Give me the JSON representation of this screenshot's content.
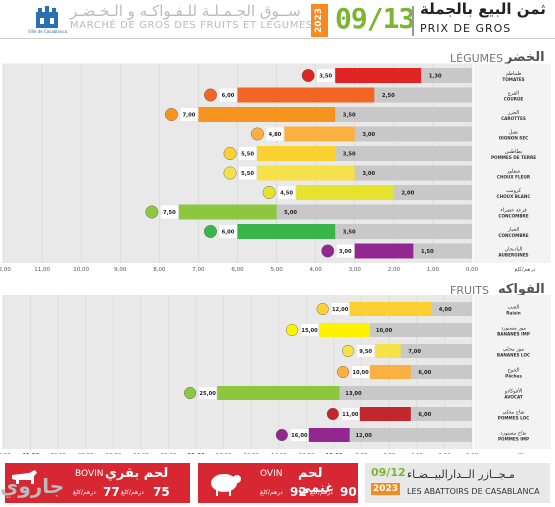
{
  "header": {
    "logo_text": "Ville de Casablanca",
    "title_ar": "ســوق الجـمـلـة للـفـواكـه و الـخـضـر",
    "title_fr": "MARCHÉ DE GROS DES FRUITS ET LÉGUMES",
    "year": "2023",
    "date": "09/13",
    "prix_ar": "ثمن البيع بالجملة",
    "prix_fr": "PRIX DE GROS"
  },
  "legumes": {
    "title_fr": "LÉGUMES",
    "title_ar": "الخضر",
    "axis_unit": "درهم/كلغ",
    "ticks": [
      "12,00",
      "11,00",
      "10,00",
      "9,00",
      "8,00",
      "7,00",
      "6,00",
      "5,00",
      "4,00",
      "3,00",
      "2,00",
      "1,00",
      "0,00"
    ]
  },
  "fruits": {
    "title_fr": "FRUITS",
    "title_ar": "الفواكه",
    "axis_unit": "درهم/كلغ",
    "ticks": [
      "46,00",
      "40,00",
      "30,00",
      "28,00",
      "26,00",
      "24,00",
      "22,00",
      "20,00",
      "18,00",
      "16,00",
      "14,00",
      "12,00",
      "10,00",
      "8,00",
      "6,00",
      "4,00",
      "2,00",
      "0,00"
    ]
  },
  "chart_data": [
    {
      "type": "bar",
      "title": "LÉGUMES",
      "categories": [
        "TOMATES",
        "COURGE",
        "CAROTTES",
        "OIGNON SEC",
        "POMMES DE TERRE",
        "CHOUX FLEUR",
        "CHOUX BLANC",
        "CONCOMBRE",
        "CONCOMBRE",
        "AUBERGINES"
      ],
      "categories_ar": [
        "طماطم",
        "القرع",
        "الجزر",
        "بصل",
        "بطاطس",
        "شفلور",
        "كرومب",
        "قرعة خضراء",
        "الخيار",
        "الباذنجان"
      ],
      "series": [
        {
          "name": "max",
          "values": [
            3.5,
            6.0,
            7.0,
            4.8,
            5.5,
            5.5,
            4.5,
            7.5,
            6.0,
            3.0
          ]
        },
        {
          "name": "min",
          "values": [
            1.3,
            2.5,
            3.5,
            3.0,
            3.5,
            3.0,
            2.0,
            5.0,
            3.5,
            1.5
          ]
        }
      ],
      "colors": [
        "#e02424",
        "#f26522",
        "#f7941d",
        "#fbb040",
        "#fbd132",
        "#f6e14b",
        "#e6e32f",
        "#8dc63f",
        "#39b54a",
        "#92278f"
      ],
      "xlim": [
        0,
        12
      ],
      "xlabel": "درهم/كلغ"
    },
    {
      "type": "bar",
      "title": "FRUITS",
      "categories": [
        "Raisin",
        "BANANES IMP",
        "BANANES LOC",
        "Pêches",
        "AVOCAT",
        "POMMES LOC",
        "POMMES IMP"
      ],
      "categories_ar": [
        "العنب",
        "موز مستورد",
        "موز محلي",
        "الخوخ",
        "الأفوكادو",
        "تفاح محلي",
        "تفاح مستورد"
      ],
      "series": [
        {
          "name": "max",
          "values": [
            12.0,
            15.0,
            9.5,
            10.0,
            25.0,
            11.0,
            16.0
          ]
        },
        {
          "name": "min",
          "values": [
            4.0,
            10.0,
            7.0,
            6.0,
            13.0,
            6.0,
            12.0
          ]
        }
      ],
      "colors": [
        "#fbd132",
        "#fff200",
        "#f6e14b",
        "#fbb040",
        "#8dc63f",
        "#c1272d",
        "#92278f"
      ],
      "xlim": [
        0,
        46
      ],
      "xlabel": "درهم/كلغ"
    }
  ],
  "footer": {
    "bovin_ar": "لحم بقري",
    "bovin_fr": "BOVIN",
    "bovin_price": "75",
    "bovin_unit": "درهم/كلغ",
    "bovin_price2": "77",
    "bovin_unit2": "درهم/كلغ",
    "ovin_ar": "لحم غنمي",
    "ovin_fr": "OVIN",
    "ovin_price": "90",
    "ovin_unit": "درهم/كلغ",
    "ovin_price2": "92",
    "ovin_unit2": "درهم/كلغ",
    "ab_date": "09/12",
    "ab_year": "2023",
    "ab_ar": "مـجــازر الــدارالبيــضـاء",
    "ab_fr": "LES ABATTOIRS DE CASABLANCA",
    "watermark": "جاروي"
  }
}
